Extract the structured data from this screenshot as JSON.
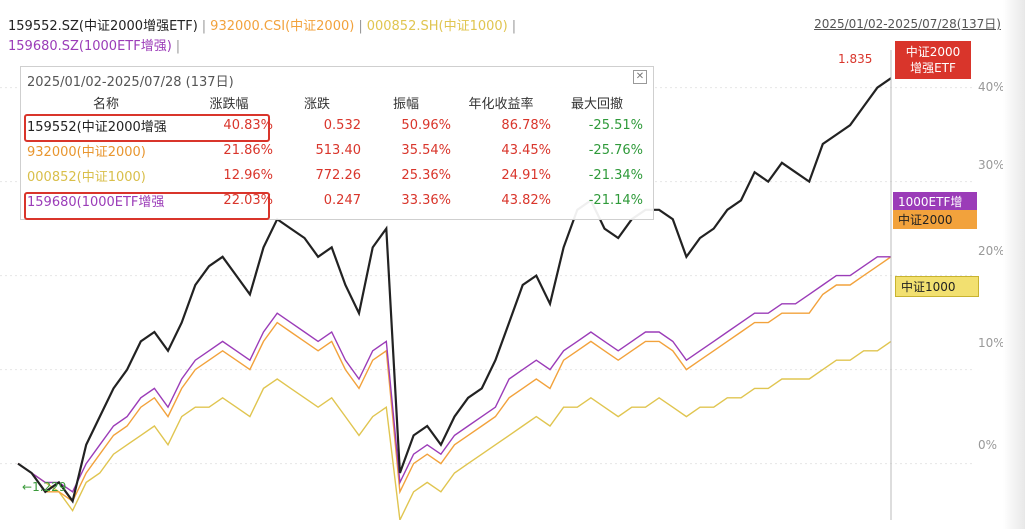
{
  "legend": {
    "items": [
      {
        "label": "159552.SZ(中证2000增强ETF)",
        "color": "#222222"
      },
      {
        "label": "932000.CSI(中证2000)",
        "color": "#f2a23c"
      },
      {
        "label": "000852.SH(中证1000)",
        "color": "#e0c550"
      },
      {
        "label": "159680.SZ(1000ETF增强)",
        "color": "#9b3cb8"
      }
    ],
    "separator": "|"
  },
  "date_range": "2025/01/02-2025/07/28(137日)",
  "panel": {
    "title": "2025/01/02-2025/07/28 (137日)",
    "headers": [
      "名称",
      "涨跌幅",
      "涨跌",
      "振幅",
      "年化收益率",
      "最大回撤"
    ],
    "rows": [
      {
        "name": "159552(中证2000增强",
        "change_pct": "40.83%",
        "change": "0.532",
        "amplitude": "50.96%",
        "annualized": "86.78%",
        "max_drawdown": "-25.51%",
        "color": "#222222"
      },
      {
        "name": "932000(中证2000)",
        "change_pct": "21.86%",
        "change": "513.40",
        "amplitude": "35.54%",
        "annualized": "43.45%",
        "max_drawdown": "-25.76%",
        "color": "#e8962f"
      },
      {
        "name": "000852(中证1000)",
        "change_pct": "12.96%",
        "change": "772.26",
        "amplitude": "25.36%",
        "annualized": "24.91%",
        "max_drawdown": "-21.34%",
        "color": "#d9bf4a"
      },
      {
        "name": "159680(1000ETF增强",
        "change_pct": "22.03%",
        "change": "0.247",
        "amplitude": "33.36%",
        "annualized": "43.82%",
        "max_drawdown": "-21.14%",
        "color": "#9b3cb8"
      }
    ]
  },
  "badges": {
    "csi2000etf": "中证2000\n增强ETF",
    "etf1000": "1000ETF增",
    "csi2000": "中证2000",
    "csi1000": "中证1000"
  },
  "annotations": {
    "peak": "1.835",
    "trough": "1.229"
  },
  "chart_data": {
    "type": "line",
    "x_range": [
      "2025/01/02",
      "2025/07/28"
    ],
    "yticks": [
      "40%",
      "30%",
      "20%",
      "10%",
      "0%"
    ],
    "ylim": [
      -6,
      44
    ],
    "series": [
      {
        "name": "159552.SZ(中证2000增强ETF)",
        "color": "#222222",
        "end_value": 40.83,
        "values": [
          0,
          -1,
          -3,
          -2,
          -4,
          2,
          5,
          8,
          10,
          13,
          14,
          12,
          15,
          19,
          21,
          22,
          20,
          18,
          23,
          26,
          25,
          24,
          22,
          23,
          19,
          16,
          23,
          25,
          -1,
          3,
          4,
          2,
          5,
          7,
          8,
          11,
          15,
          19,
          20,
          17,
          23,
          27,
          28,
          25,
          24,
          26,
          27,
          27,
          26,
          22,
          24,
          25,
          27,
          28,
          31,
          30,
          32,
          31,
          30,
          34,
          35,
          36,
          38,
          40,
          41
        ]
      },
      {
        "name": "932000.CSI(中证2000)",
        "color": "#f2a23c",
        "end_value": 21.86,
        "values": [
          0,
          -1,
          -3,
          -3,
          -4,
          -1,
          1,
          3,
          4,
          6,
          7,
          5,
          8,
          10,
          11,
          12,
          11,
          10,
          13,
          15,
          14,
          13,
          12,
          13,
          10,
          8,
          11,
          12,
          -3,
          0,
          1,
          0,
          2,
          3,
          4,
          5,
          7,
          8,
          9,
          8,
          11,
          12,
          13,
          12,
          11,
          12,
          13,
          13,
          12,
          10,
          11,
          12,
          13,
          14,
          15,
          15,
          16,
          16,
          16,
          18,
          19,
          19,
          20,
          21,
          22
        ]
      },
      {
        "name": "000852.SH(中证1000)",
        "color": "#e0c550",
        "end_value": 12.96,
        "values": [
          0,
          -1,
          -2,
          -3,
          -5,
          -2,
          -1,
          1,
          2,
          3,
          4,
          2,
          5,
          6,
          6,
          7,
          6,
          5,
          8,
          9,
          8,
          7,
          6,
          7,
          5,
          3,
          5,
          6,
          -6,
          -3,
          -2,
          -3,
          -1,
          0,
          1,
          2,
          3,
          4,
          5,
          4,
          6,
          6,
          7,
          6,
          5,
          6,
          6,
          7,
          6,
          5,
          6,
          6,
          7,
          7,
          8,
          8,
          9,
          9,
          9,
          10,
          11,
          11,
          12,
          12,
          13
        ]
      },
      {
        "name": "159680.SZ(1000ETF增强)",
        "color": "#9b3cb8",
        "end_value": 22.03,
        "values": [
          0,
          -1,
          -2,
          -2,
          -3,
          0,
          2,
          4,
          5,
          7,
          8,
          6,
          9,
          11,
          12,
          13,
          12,
          11,
          14,
          16,
          15,
          14,
          13,
          14,
          11,
          9,
          12,
          13,
          -2,
          1,
          2,
          1,
          3,
          4,
          5,
          6,
          9,
          10,
          11,
          10,
          12,
          13,
          14,
          13,
          12,
          13,
          14,
          14,
          13,
          11,
          12,
          13,
          14,
          15,
          16,
          16,
          17,
          17,
          18,
          19,
          20,
          20,
          21,
          22,
          22
        ]
      }
    ]
  }
}
